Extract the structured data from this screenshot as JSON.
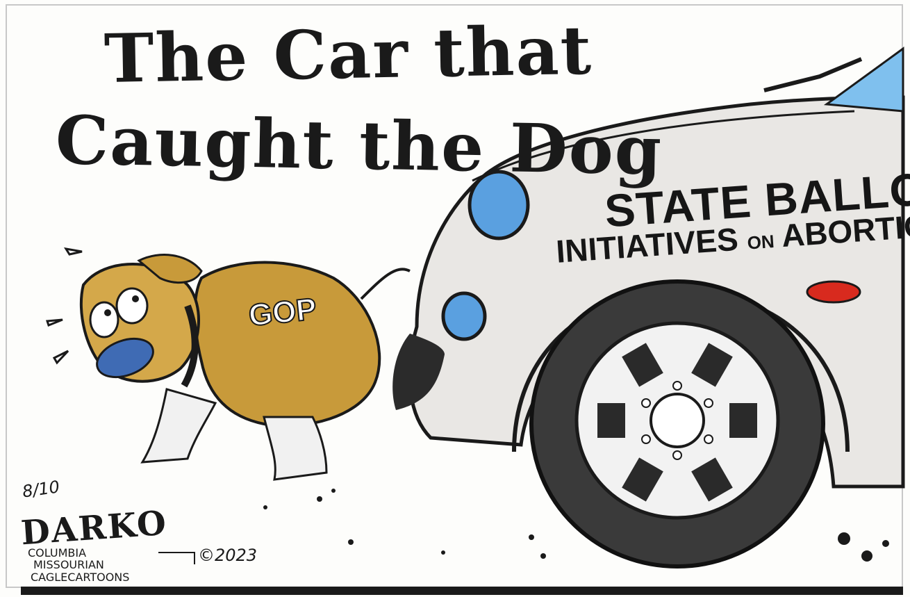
{
  "cartoon": {
    "title_line_1": "The Car that",
    "title_line_2": "Caught the Dog",
    "car_label_line_1": "STATE BALLOT",
    "car_label_line_2a": "INITIATIVES",
    "car_label_line_2b": "ON",
    "car_label_line_2c": "ABORTION",
    "dog_label": "GOP",
    "signature_date": "8/10",
    "signature_name": "DARKO",
    "signature_paper_1": "COLUMBIA",
    "signature_paper_2": "MISSOURIAN",
    "signature_syndicate": "CAGLECARTOONS",
    "signature_copyright": "©2023"
  },
  "colors": {
    "ink": "#1a1a1a",
    "car_body": "#e9e7e4",
    "dog_fur": "#c89a3a",
    "headlight_blue": "#5aa0e0",
    "taillight_red": "#d82a1e",
    "windshield_blue": "#7fc0ee",
    "tire": "#3a3a3a"
  }
}
